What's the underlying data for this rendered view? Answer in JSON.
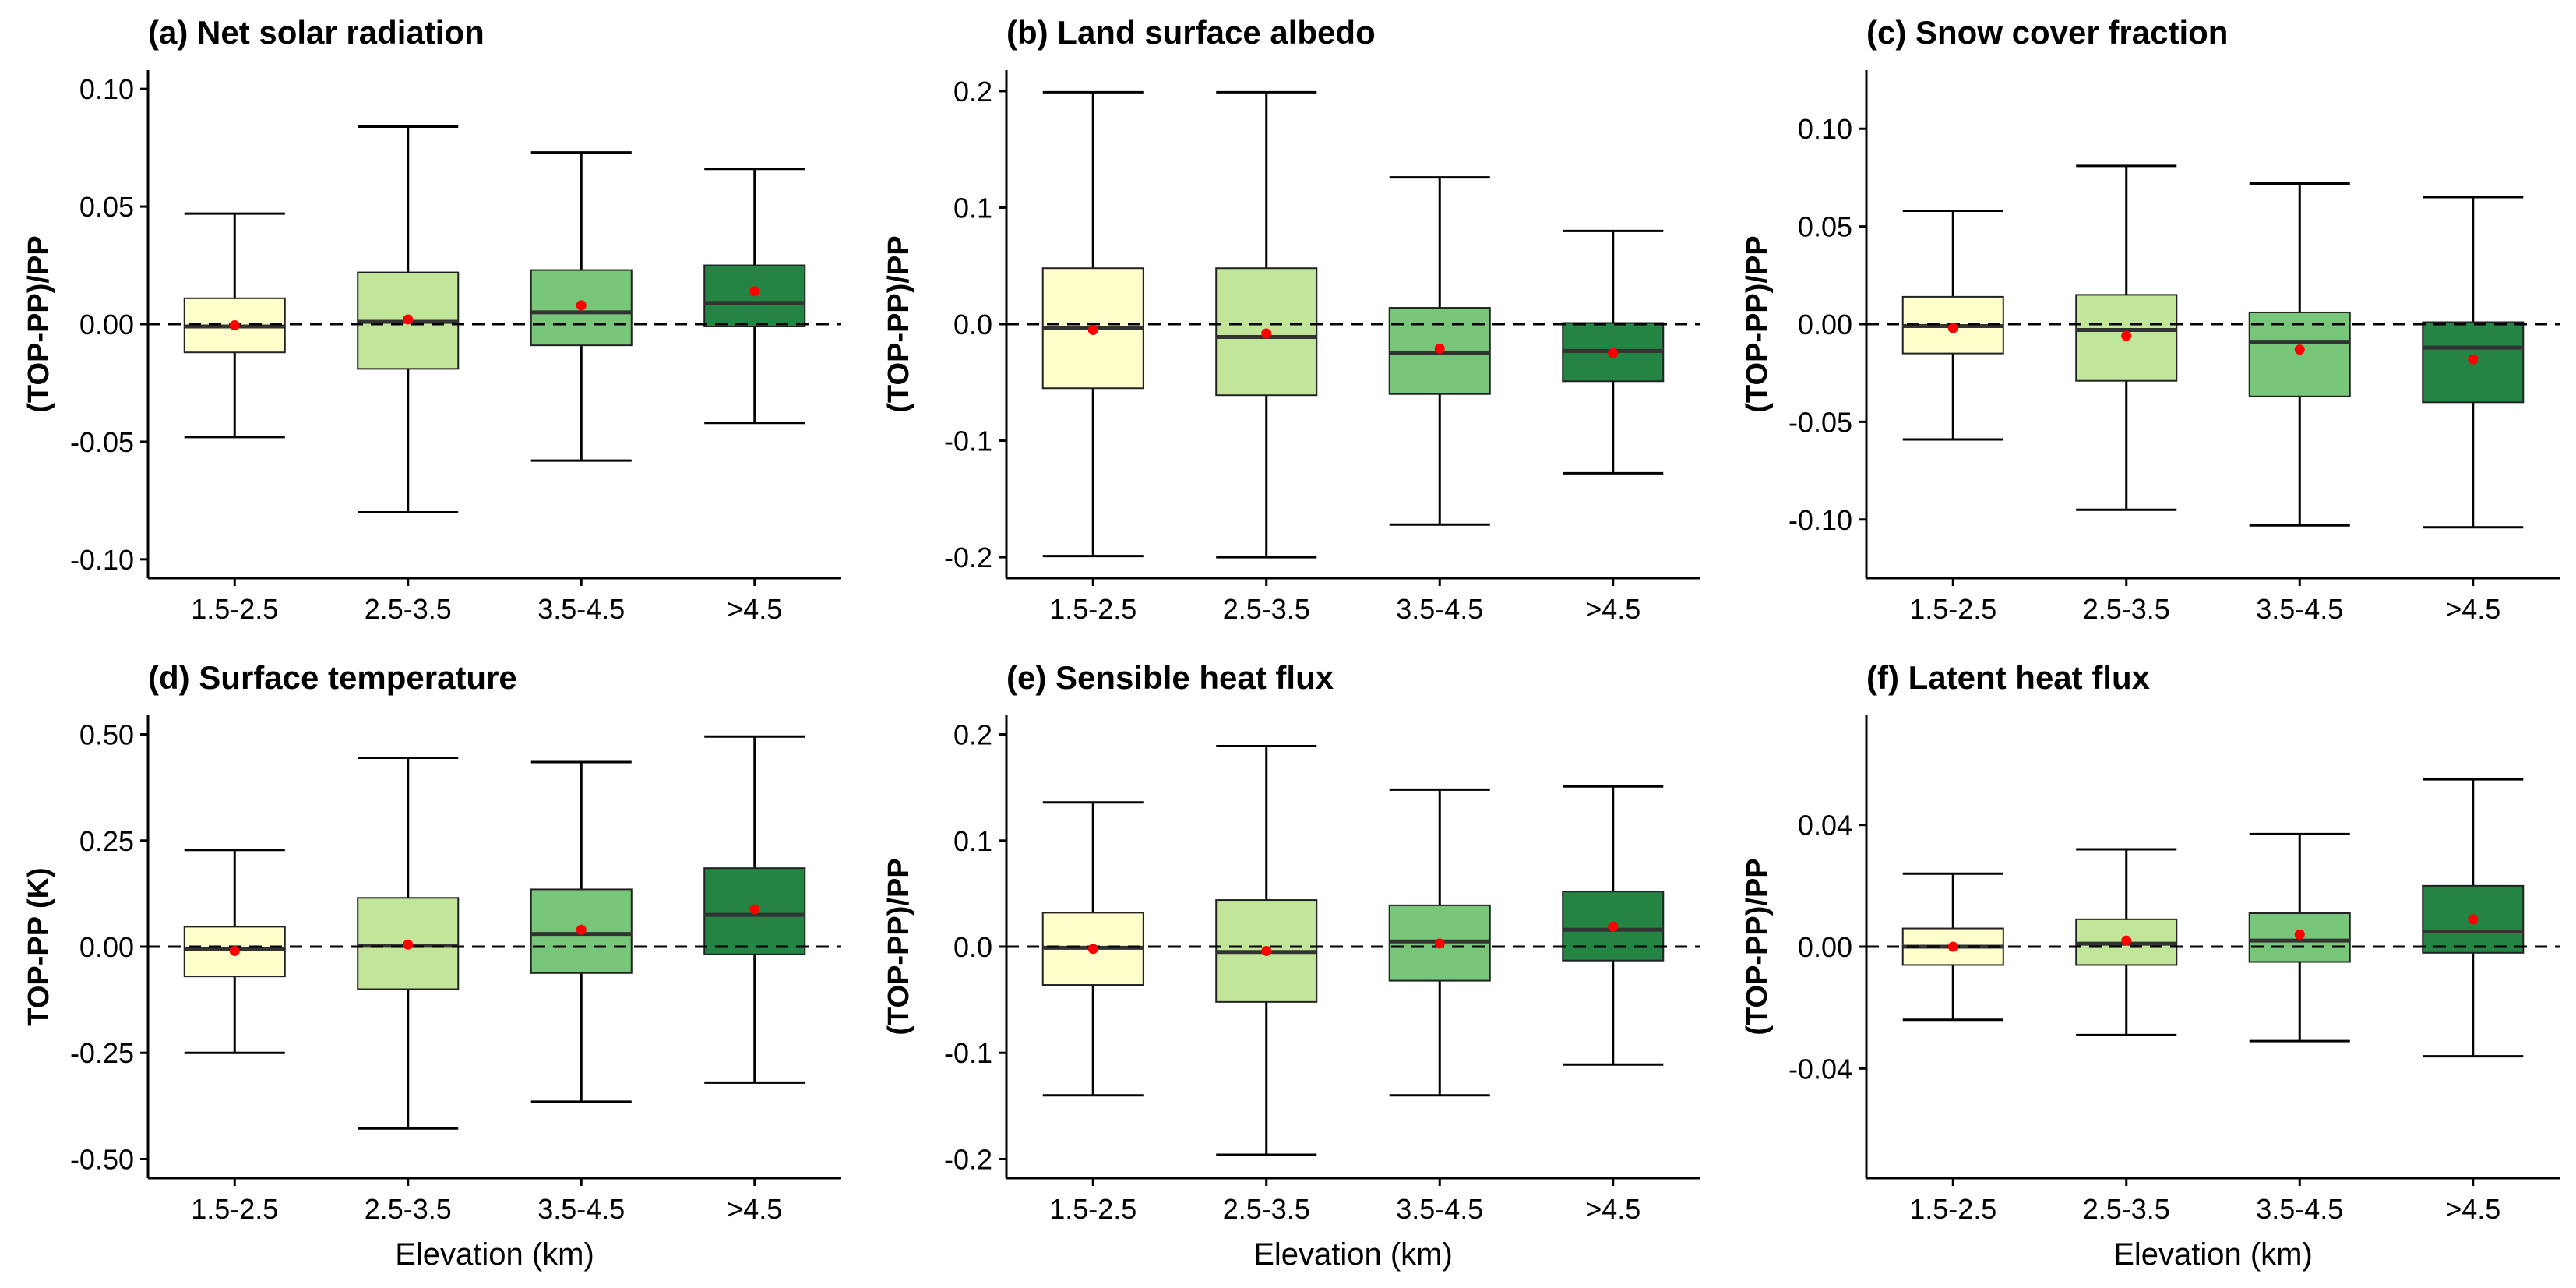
{
  "chart_data": [
    {
      "type": "box",
      "title": "(a) Net solar radiation",
      "ylabel": "(TOP-PP)/PP",
      "xlabel": "",
      "categories": [
        "1.5-2.5",
        "2.5-3.5",
        "3.5-4.5",
        ">4.5"
      ],
      "ylim": [
        -0.108,
        0.108
      ],
      "yticks": [
        0.1,
        0.05,
        0.0,
        -0.05,
        -0.1
      ],
      "ytick_labels": [
        "0.10",
        "0.05",
        "0.00",
        "-0.05",
        "-0.10"
      ],
      "boxes": [
        {
          "lower_whisker": -0.048,
          "q1": -0.012,
          "median": -0.001,
          "q3": 0.011,
          "upper_whisker": 0.047,
          "mean": -0.0005
        },
        {
          "lower_whisker": -0.08,
          "q1": -0.019,
          "median": 0.001,
          "q3": 0.022,
          "upper_whisker": 0.084,
          "mean": 0.002
        },
        {
          "lower_whisker": -0.058,
          "q1": -0.009,
          "median": 0.005,
          "q3": 0.023,
          "upper_whisker": 0.073,
          "mean": 0.008
        },
        {
          "lower_whisker": -0.042,
          "q1": -0.001,
          "median": 0.009,
          "q3": 0.025,
          "upper_whisker": 0.066,
          "mean": 0.014
        }
      ]
    },
    {
      "type": "box",
      "title": "(b) Land surface albedo",
      "ylabel": "(TOP-PP)/PP",
      "xlabel": "",
      "categories": [
        "1.5-2.5",
        "2.5-3.5",
        "3.5-4.5",
        ">4.5"
      ],
      "ylim": [
        -0.218,
        0.218
      ],
      "yticks": [
        0.2,
        0.1,
        0.0,
        -0.1,
        -0.2
      ],
      "ytick_labels": [
        "0.2",
        "0.1",
        "0.0",
        "-0.1",
        "-0.2"
      ],
      "boxes": [
        {
          "lower_whisker": -0.199,
          "q1": -0.055,
          "median": -0.003,
          "q3": 0.048,
          "upper_whisker": 0.199,
          "mean": -0.005
        },
        {
          "lower_whisker": -0.2,
          "q1": -0.061,
          "median": -0.011,
          "q3": 0.048,
          "upper_whisker": 0.199,
          "mean": -0.008
        },
        {
          "lower_whisker": -0.172,
          "q1": -0.06,
          "median": -0.025,
          "q3": 0.014,
          "upper_whisker": 0.126,
          "mean": -0.021
        },
        {
          "lower_whisker": -0.128,
          "q1": -0.049,
          "median": -0.023,
          "q3": 0.001,
          "upper_whisker": 0.08,
          "mean": -0.025
        }
      ]
    },
    {
      "type": "box",
      "title": "(c) Snow cover fraction",
      "ylabel": "(TOP-PP)/PP",
      "xlabel": "",
      "categories": [
        "1.5-2.5",
        "2.5-3.5",
        "3.5-4.5",
        ">4.5"
      ],
      "ylim": [
        -0.13,
        0.13
      ],
      "yticks": [
        0.1,
        0.05,
        0.0,
        -0.05,
        -0.1
      ],
      "ytick_labels": [
        "0.10",
        "0.05",
        "0.00",
        "-0.05",
        "-0.10"
      ],
      "boxes": [
        {
          "lower_whisker": -0.059,
          "q1": -0.015,
          "median": -0.001,
          "q3": 0.014,
          "upper_whisker": 0.058,
          "mean": -0.002
        },
        {
          "lower_whisker": -0.095,
          "q1": -0.029,
          "median": -0.003,
          "q3": 0.015,
          "upper_whisker": 0.081,
          "mean": -0.006
        },
        {
          "lower_whisker": -0.103,
          "q1": -0.037,
          "median": -0.009,
          "q3": 0.006,
          "upper_whisker": 0.072,
          "mean": -0.013
        },
        {
          "lower_whisker": -0.104,
          "q1": -0.04,
          "median": -0.012,
          "q3": 0.001,
          "upper_whisker": 0.065,
          "mean": -0.018
        }
      ]
    },
    {
      "type": "box",
      "title": "(d) Surface temperature",
      "ylabel": "TOP-PP (K)",
      "xlabel": "Elevation (km)",
      "categories": [
        "1.5-2.5",
        "2.5-3.5",
        "3.5-4.5",
        ">4.5"
      ],
      "ylim": [
        -0.545,
        0.545
      ],
      "yticks": [
        0.5,
        0.25,
        0.0,
        -0.25,
        -0.5
      ],
      "ytick_labels": [
        "0.50",
        "0.25",
        "0.00",
        "-0.25",
        "-0.50"
      ],
      "boxes": [
        {
          "lower_whisker": -0.25,
          "q1": -0.07,
          "median": -0.005,
          "q3": 0.047,
          "upper_whisker": 0.228,
          "mean": -0.01
        },
        {
          "lower_whisker": -0.428,
          "q1": -0.1,
          "median": 0.002,
          "q3": 0.115,
          "upper_whisker": 0.445,
          "mean": 0.005
        },
        {
          "lower_whisker": -0.365,
          "q1": -0.062,
          "median": 0.03,
          "q3": 0.135,
          "upper_whisker": 0.435,
          "mean": 0.04
        },
        {
          "lower_whisker": -0.32,
          "q1": -0.018,
          "median": 0.075,
          "q3": 0.185,
          "upper_whisker": 0.495,
          "mean": 0.088
        }
      ]
    },
    {
      "type": "box",
      "title": "(e) Sensible heat flux",
      "ylabel": "(TOP-PP)/PP",
      "xlabel": "Elevation (km)",
      "categories": [
        "1.5-2.5",
        "2.5-3.5",
        "3.5-4.5",
        ">4.5"
      ],
      "ylim": [
        -0.218,
        0.218
      ],
      "yticks": [
        0.2,
        0.1,
        0.0,
        -0.1,
        -0.2
      ],
      "ytick_labels": [
        "0.2",
        "0.1",
        "0.0",
        "-0.1",
        "-0.2"
      ],
      "boxes": [
        {
          "lower_whisker": -0.14,
          "q1": -0.036,
          "median": -0.001,
          "q3": 0.032,
          "upper_whisker": 0.136,
          "mean": -0.002
        },
        {
          "lower_whisker": -0.196,
          "q1": -0.052,
          "median": -0.005,
          "q3": 0.044,
          "upper_whisker": 0.189,
          "mean": -0.004
        },
        {
          "lower_whisker": -0.14,
          "q1": -0.032,
          "median": 0.005,
          "q3": 0.039,
          "upper_whisker": 0.148,
          "mean": 0.003
        },
        {
          "lower_whisker": -0.111,
          "q1": -0.013,
          "median": 0.016,
          "q3": 0.052,
          "upper_whisker": 0.151,
          "mean": 0.019
        }
      ]
    },
    {
      "type": "box",
      "title": "(f) Latent heat flux",
      "ylabel": "(TOP-PP)/PP",
      "xlabel": "Elevation (km)",
      "categories": [
        "1.5-2.5",
        "2.5-3.5",
        "3.5-4.5",
        ">4.5"
      ],
      "ylim": [
        -0.076,
        0.076
      ],
      "yticks": [
        0.04,
        0.0,
        -0.04
      ],
      "ytick_labels": [
        "0.04",
        "0.00",
        "-0.04"
      ],
      "boxes": [
        {
          "lower_whisker": -0.024,
          "q1": -0.006,
          "median": 0.0,
          "q3": 0.006,
          "upper_whisker": 0.024,
          "mean": 0.0
        },
        {
          "lower_whisker": -0.029,
          "q1": -0.006,
          "median": 0.001,
          "q3": 0.009,
          "upper_whisker": 0.032,
          "mean": 0.002
        },
        {
          "lower_whisker": -0.031,
          "q1": -0.005,
          "median": 0.002,
          "q3": 0.011,
          "upper_whisker": 0.037,
          "mean": 0.004
        },
        {
          "lower_whisker": -0.036,
          "q1": -0.002,
          "median": 0.005,
          "q3": 0.02,
          "upper_whisker": 0.055,
          "mean": 0.009
        }
      ]
    }
  ],
  "colors": {
    "box_fills": [
      "#ffffcc",
      "#c2e699",
      "#78c679",
      "#238443"
    ],
    "mean_point": "#ff0000",
    "axis": "#000000",
    "reference_line": "#000000"
  }
}
